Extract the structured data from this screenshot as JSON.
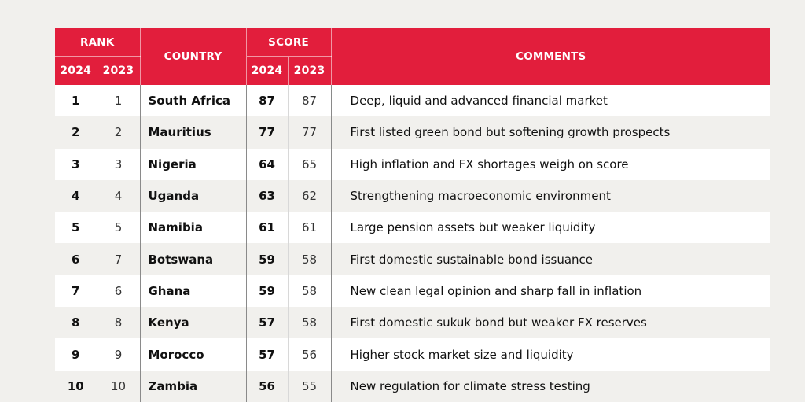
{
  "header": {
    "rank": "RANK",
    "country": "COUNTRY",
    "score": "SCORE",
    "comments": "COMMENTS",
    "year_2024": "2024",
    "year_2023": "2023"
  },
  "rows": [
    {
      "rank_2024": "1",
      "rank_2023": "1",
      "country": "South Africa",
      "score_2024": "87",
      "score_2023": "87",
      "comment": "Deep, liquid and advanced financial market"
    },
    {
      "rank_2024": "2",
      "rank_2023": "2",
      "country": "Mauritius",
      "score_2024": "77",
      "score_2023": "77",
      "comment": "First listed green bond but softening growth prospects"
    },
    {
      "rank_2024": "3",
      "rank_2023": "3",
      "country": "Nigeria",
      "score_2024": "64",
      "score_2023": "65",
      "comment": "High inflation and FX shortages weigh on score"
    },
    {
      "rank_2024": "4",
      "rank_2023": "4",
      "country": "Uganda",
      "score_2024": "63",
      "score_2023": "62",
      "comment": "Strengthening macroeconomic environment"
    },
    {
      "rank_2024": "5",
      "rank_2023": "5",
      "country": "Namibia",
      "score_2024": "61",
      "score_2023": "61",
      "comment": "Large pension assets but weaker liquidity"
    },
    {
      "rank_2024": "6",
      "rank_2023": "7",
      "country": "Botswana",
      "score_2024": "59",
      "score_2023": "58",
      "comment": "First domestic sustainable bond issuance"
    },
    {
      "rank_2024": "7",
      "rank_2023": "6",
      "country": "Ghana",
      "score_2024": "59",
      "score_2023": "58",
      "comment": "New clean legal opinion and sharp fall in inflation"
    },
    {
      "rank_2024": "8",
      "rank_2023": "8",
      "country": "Kenya",
      "score_2024": "57",
      "score_2023": "58",
      "comment": "First domestic sukuk bond but weaker FX reserves"
    },
    {
      "rank_2024": "9",
      "rank_2023": "9",
      "country": "Morocco",
      "score_2024": "57",
      "score_2023": "56",
      "comment": "Higher stock market size and liquidity"
    },
    {
      "rank_2024": "10",
      "rank_2023": "10",
      "country": "Zambia",
      "score_2024": "56",
      "score_2023": "55",
      "comment": "New regulation for climate stress testing"
    }
  ],
  "colors": {
    "header_bg": "#e21e3c",
    "page_bg": "#f1f0ed",
    "row_light": "#ffffff"
  }
}
